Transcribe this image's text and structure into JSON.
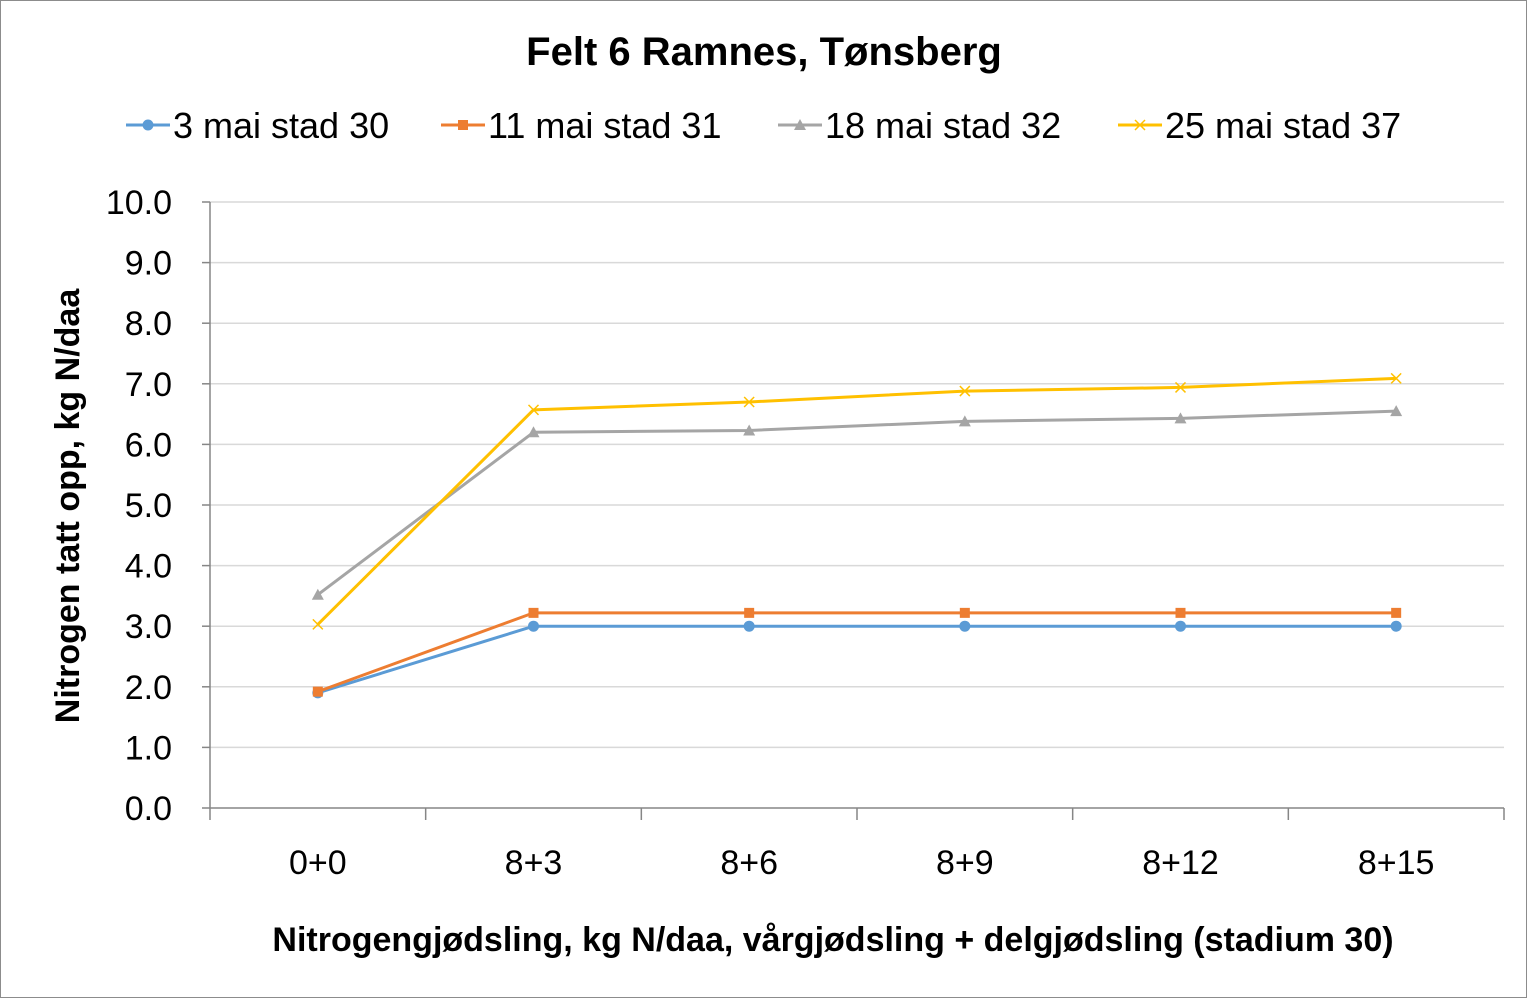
{
  "chart_data": {
    "type": "line",
    "title": "Felt 6 Ramnes, Tønsberg",
    "xlabel": "Nitrogengjødsling, kg N/daa, vårgjødsling + delgjødsling (stadium 30)",
    "ylabel": "Nitrogen tatt opp, kg N/daa",
    "categories": [
      "0+0",
      "8+3",
      "8+6",
      "8+9",
      "8+12",
      "8+15"
    ],
    "ylim": [
      0,
      10
    ],
    "ytick_step": 1,
    "yticks": [
      "0.0",
      "1.0",
      "2.0",
      "3.0",
      "4.0",
      "5.0",
      "6.0",
      "7.0",
      "8.0",
      "9.0",
      "10.0"
    ],
    "grid": true,
    "legend_position": "top",
    "series": [
      {
        "name": "3 mai stad 30",
        "color": "#5B9BD5",
        "marker": "circle",
        "values": [
          1.9,
          3.0,
          3.0,
          3.0,
          3.0,
          3.0
        ]
      },
      {
        "name": "11 mai stad 31",
        "color": "#ED7D31",
        "marker": "square",
        "values": [
          1.92,
          3.22,
          3.22,
          3.22,
          3.22,
          3.22
        ]
      },
      {
        "name": "18 mai stad 32",
        "color": "#A5A5A5",
        "marker": "triangle",
        "values": [
          3.52,
          6.2,
          6.23,
          6.38,
          6.43,
          6.55
        ]
      },
      {
        "name": "25 mai stad 37",
        "color": "#FFC000",
        "marker": "x",
        "values": [
          3.03,
          6.57,
          6.7,
          6.88,
          6.94,
          7.09
        ]
      }
    ]
  }
}
